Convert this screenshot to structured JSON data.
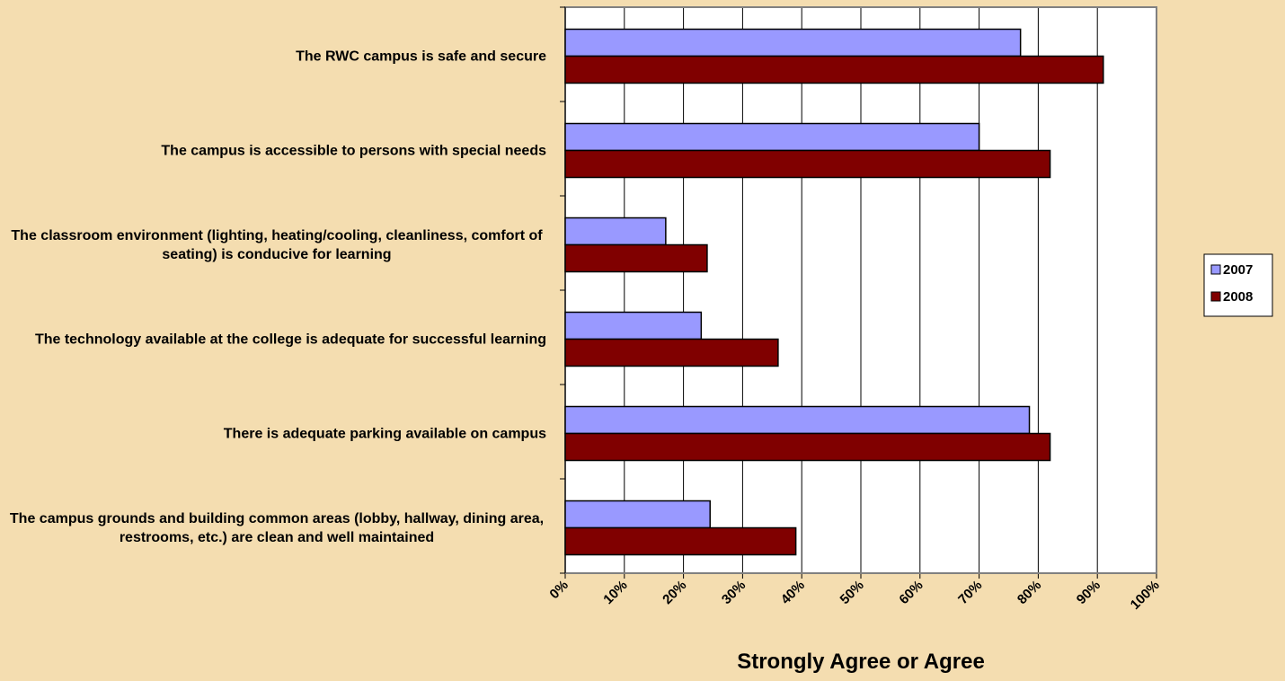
{
  "chart_data": {
    "type": "hbar",
    "x_label": "Strongly Agree or Agree",
    "categories": [
      "The RWC campus is safe and secure",
      "The campus is accessible to persons with special needs",
      "The classroom environment (lighting, heating/cooling, cleanliness, comfort of seating) is conducive for learning",
      "The technology available at the college is adequate for successful learning",
      "There is adequate parking available on campus",
      "The campus grounds and building common areas (lobby, hallway, dining area, restrooms, etc.) are clean and well maintained"
    ],
    "series": [
      {
        "name": "2007",
        "color": "#9999ff",
        "values": [
          77,
          70,
          17,
          23,
          78.5,
          24.5
        ]
      },
      {
        "name": "2008",
        "color": "#800000",
        "values": [
          91,
          82,
          24,
          36,
          82,
          39
        ]
      }
    ],
    "xlim": [
      0,
      100
    ],
    "xticks": [
      {
        "value": 0,
        "label": "0%"
      },
      {
        "value": 10,
        "label": "10%"
      },
      {
        "value": 20,
        "label": "20%"
      },
      {
        "value": 30,
        "label": "30%"
      },
      {
        "value": 40,
        "label": "40%"
      },
      {
        "value": 50,
        "label": "50%"
      },
      {
        "value": 60,
        "label": "60%"
      },
      {
        "value": 70,
        "label": "70%"
      },
      {
        "value": 80,
        "label": "80%"
      },
      {
        "value": 90,
        "label": "90%"
      },
      {
        "value": 100,
        "label": "100%"
      }
    ],
    "grid": true,
    "legend": "right"
  }
}
